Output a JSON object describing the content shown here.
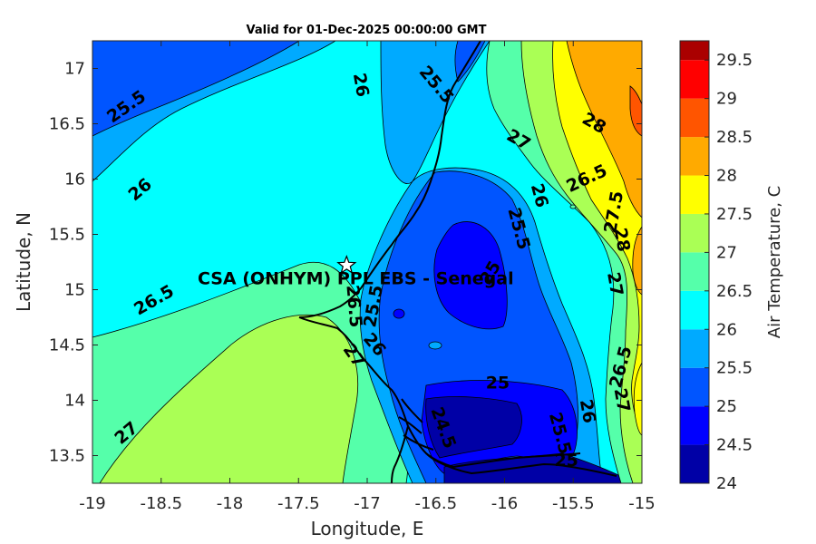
{
  "chart_data": {
    "type": "contour",
    "title": "Valid for 01-Dec-2025 00:00:00 GMT",
    "xlabel": "Longitude, E",
    "ylabel": "Latitude, N",
    "xlim": [
      -19,
      -15
    ],
    "ylim": [
      13.25,
      17.25
    ],
    "x_ticks": [
      -19,
      -18.5,
      -18,
      -17.5,
      -17,
      -16.5,
      -16,
      -15.5,
      -15
    ],
    "y_ticks": [
      13.5,
      14,
      14.5,
      15,
      15.5,
      16,
      16.5,
      17
    ],
    "colorbar": {
      "label": "Air Temperature, C",
      "ticks": [
        24,
        24.5,
        25,
        25.5,
        26,
        26.5,
        27,
        27.5,
        28,
        28.5,
        29,
        29.5
      ],
      "colors": [
        "#0000a6",
        "#0000ff",
        "#0055ff",
        "#00aaff",
        "#00ffff",
        "#55ffaa",
        "#aaff55",
        "#ffff00",
        "#ffaa00",
        "#ff5500",
        "#ff0000",
        "#aa0000"
      ]
    },
    "site": {
      "name": "CSA (ONHYM) PPL EBS  - Senegal",
      "lon": -17.15,
      "lat": 15.22
    },
    "contour_labels": [
      {
        "text": "25.5",
        "lon": -18.75,
        "lat": 16.65,
        "rot": -35
      },
      {
        "text": "26",
        "lon": -17.05,
        "lat": 16.85,
        "rot": 80
      },
      {
        "text": "25.5",
        "lon": -16.5,
        "lat": 16.85,
        "rot": 50
      },
      {
        "text": "26",
        "lon": -18.65,
        "lat": 15.9,
        "rot": -40
      },
      {
        "text": "26.5",
        "lon": -18.55,
        "lat": 14.9,
        "rot": -30
      },
      {
        "text": "27",
        "lon": -18.75,
        "lat": 13.7,
        "rot": -40
      },
      {
        "text": "26.5",
        "lon": -17.1,
        "lat": 14.85,
        "rot": 85
      },
      {
        "text": "25.5",
        "lon": -16.95,
        "lat": 14.85,
        "rot": -80
      },
      {
        "text": "26",
        "lon": -16.95,
        "lat": 14.5,
        "rot": 50
      },
      {
        "text": "27",
        "lon": -17.1,
        "lat": 14.4,
        "rot": 55
      },
      {
        "text": "24.5",
        "lon": -16.45,
        "lat": 13.75,
        "rot": 70
      },
      {
        "text": "25",
        "lon": -16.05,
        "lat": 14.15,
        "rot": 0
      },
      {
        "text": "25",
        "lon": -16.1,
        "lat": 15.15,
        "rot": -60
      },
      {
        "text": "25.5",
        "lon": -15.9,
        "lat": 15.55,
        "rot": 75
      },
      {
        "text": "26",
        "lon": -15.75,
        "lat": 15.85,
        "rot": 75
      },
      {
        "text": "27",
        "lon": -15.9,
        "lat": 16.35,
        "rot": 30
      },
      {
        "text": "26.5",
        "lon": -15.4,
        "lat": 16.0,
        "rot": -25
      },
      {
        "text": "28",
        "lon": -15.35,
        "lat": 16.5,
        "rot": 30
      },
      {
        "text": "27.5",
        "lon": -15.2,
        "lat": 15.7,
        "rot": -80
      },
      {
        "text": "28",
        "lon": -15.15,
        "lat": 15.45,
        "rot": 80
      },
      {
        "text": "27",
        "lon": -15.2,
        "lat": 15.05,
        "rot": 80
      },
      {
        "text": "26.5",
        "lon": -15.15,
        "lat": 14.3,
        "rot": -75
      },
      {
        "text": "26",
        "lon": -15.4,
        "lat": 13.9,
        "rot": 80
      },
      {
        "text": "27",
        "lon": -15.15,
        "lat": 14.0,
        "rot": 80
      },
      {
        "text": "25.5",
        "lon": -15.6,
        "lat": 13.7,
        "rot": 75
      },
      {
        "text": "25",
        "lon": -15.55,
        "lat": 13.45,
        "rot": 0
      }
    ]
  }
}
